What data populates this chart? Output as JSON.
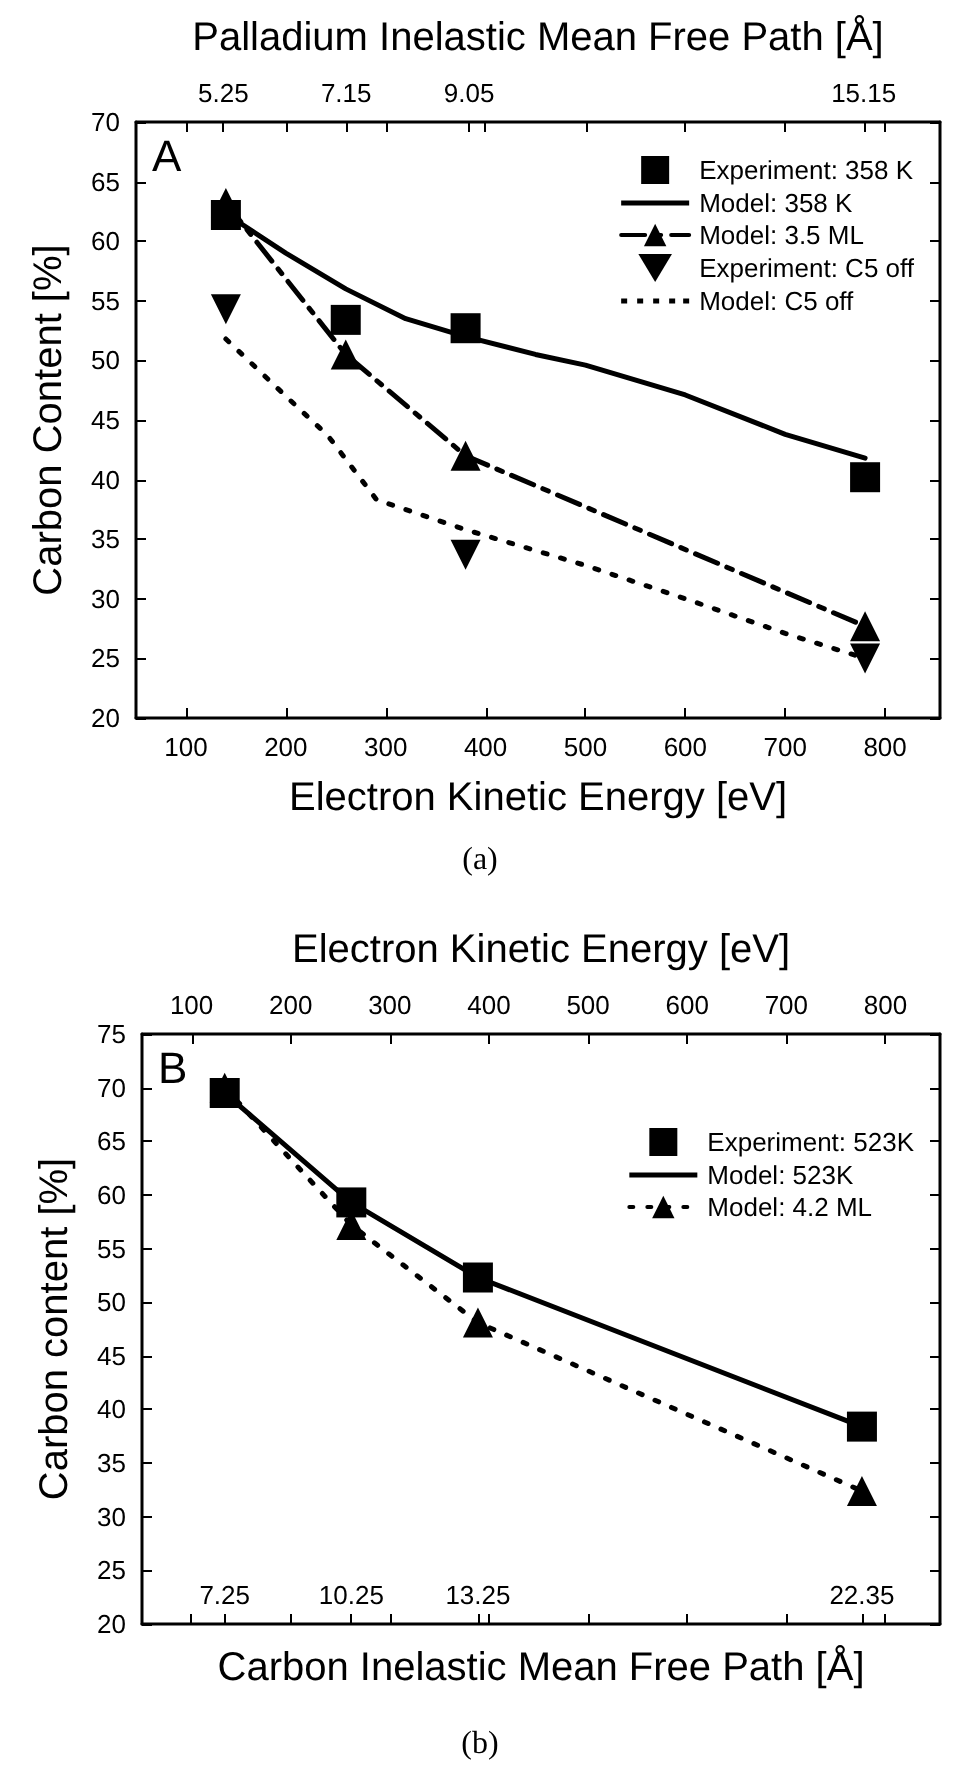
{
  "chart_data": [
    {
      "type": "line",
      "xlabel": "Electron Kinetic Energy [eV]",
      "ylabel": "Carbon Content [%]",
      "x2label": "Palladium Inelastic Mean Free Path [Å]",
      "xlim": [
        50,
        855
      ],
      "xticks": [
        100,
        200,
        300,
        400,
        500,
        600,
        700,
        800
      ],
      "ylim": [
        20,
        70
      ],
      "yticks": [
        20,
        25,
        30,
        35,
        40,
        45,
        50,
        55,
        60,
        65,
        70
      ],
      "x2lim": [
        3.9,
        16.33
      ],
      "x2ticks": [
        5.25,
        7.15,
        9.05,
        15.15,
        {
          "value": 4.67,
          "label": null
        },
        {
          "value": 6.22,
          "label": null
        },
        {
          "value": 7.76,
          "label": null
        },
        {
          "value": 9.3,
          "label": null
        },
        {
          "value": 10.85,
          "label": null
        },
        {
          "value": 12.39,
          "label": null
        },
        {
          "value": 13.94,
          "label": null
        },
        {
          "value": 15.48,
          "label": null
        }
      ],
      "grid": false,
      "legend": "top right",
      "annotations": [
        "A",
        "(a)"
      ],
      "series": [
        {
          "name": "Experiment: 358 K",
          "type": "scatter",
          "marker": "square",
          "color": "#000000",
          "x": [
            140,
            260,
            380,
            780
          ],
          "values": [
            62.2,
            53.4,
            52.7,
            40.2
          ]
        },
        {
          "name": "Model: 358 K",
          "type": "line",
          "marker": "none",
          "line_style": "solid",
          "color": "#000000",
          "x": [
            140,
            200,
            260,
            320,
            380,
            450,
            500,
            600,
            700,
            780
          ],
          "values": [
            62.3,
            59,
            56,
            53.5,
            52,
            50.5,
            49.6,
            47.1,
            43.8,
            41.8
          ]
        },
        {
          "name": "Model: 3.5 ML",
          "type": "line",
          "marker": "triangle",
          "line_style": "dashed",
          "color": "#000000",
          "x": [
            140,
            260,
            380,
            780
          ],
          "values": [
            63.2,
            50.5,
            42.0,
            27.7
          ]
        },
        {
          "name": "Experiment: C5 off",
          "type": "scatter",
          "marker": "triangle-down",
          "color": "#000000",
          "x": [
            140,
            380,
            780
          ],
          "values": [
            54.3,
            33.7,
            25.0
          ]
        },
        {
          "name": "Model: C5 off",
          "type": "line",
          "marker": "none",
          "line_style": "dotted",
          "color": "#000000",
          "x": [
            140,
            200,
            242,
            291,
            380,
            500,
            600,
            700,
            780
          ],
          "values": [
            51.8,
            47,
            43.7,
            38.3,
            35.8,
            32.8,
            30.0,
            27.1,
            25.0
          ]
        }
      ]
    },
    {
      "type": "line",
      "xlabel": "Carbon Inelastic Mean Free Path [Å]",
      "ylabel": "Carbon content [%]",
      "x2label": "Electron Kinetic Energy [eV]",
      "xlim": [
        5.29,
        24.2
      ],
      "xticks": [
        7.25,
        10.25,
        13.25,
        22.35,
        {
          "value": 6.46,
          "label": null
        },
        {
          "value": 8.81,
          "label": null
        },
        {
          "value": 11.16,
          "label": null
        },
        {
          "value": 13.51,
          "label": null
        },
        {
          "value": 15.86,
          "label": null
        },
        {
          "value": 18.21,
          "label": null
        },
        {
          "value": 20.55,
          "label": null
        },
        {
          "value": 22.9,
          "label": null
        }
      ],
      "ylim": [
        20,
        75
      ],
      "yticks": [
        20,
        25,
        30,
        35,
        40,
        45,
        50,
        55,
        60,
        65,
        70,
        75
      ],
      "x2lim": [
        50,
        855
      ],
      "x2ticks": [
        100,
        200,
        300,
        400,
        500,
        600,
        700,
        800
      ],
      "grid": false,
      "legend": "top right",
      "annotations": [
        "B",
        "(b)"
      ],
      "series": [
        {
          "name": "Experiment: 523K",
          "type": "scatter",
          "marker": "square",
          "color": "#000000",
          "x": [
            7.25,
            10.25,
            13.25,
            22.35
          ],
          "values": [
            69.5,
            59.3,
            52.3,
            38.4
          ]
        },
        {
          "name": "Model: 523K",
          "type": "line",
          "marker": "none",
          "line_style": "solid",
          "color": "#000000",
          "x": [
            7.25,
            10.25,
            13.25,
            22.35
          ],
          "values": [
            69.5,
            59.3,
            52.3,
            38.4
          ]
        },
        {
          "name": "Model: 4.2 ML",
          "type": "line",
          "marker": "triangle",
          "line_style": "dotted",
          "color": "#000000",
          "x": [
            7.25,
            10.25,
            13.25,
            22.35
          ],
          "values": [
            70.0,
            57.2,
            48.1,
            32.4
          ]
        }
      ]
    }
  ]
}
